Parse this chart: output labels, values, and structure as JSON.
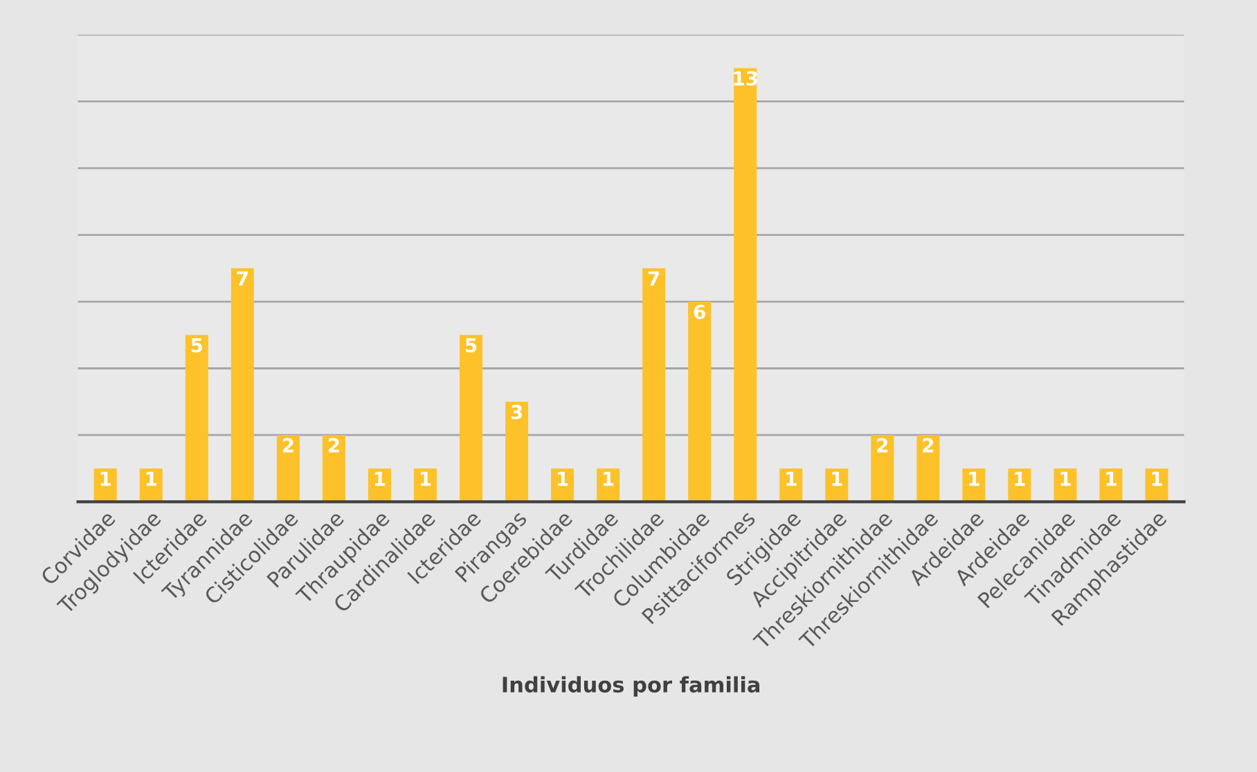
{
  "chart_data": {
    "type": "bar",
    "xlabel": "Individuos por familia",
    "categories": [
      "Corvidae",
      "Troglodyidae",
      "Icteridae",
      "Tyrannidae",
      "Cisticolidae",
      "Parulidae",
      "Thraupidae",
      "Cardinalidae",
      "Icteridae",
      "Pirangas",
      "Coerebidae",
      "Turdidae",
      "Trochilidae",
      "Columbidae",
      "Psittaciformes",
      "Strigidae",
      "Accipitridae",
      "Threskiornithidae",
      "Threskiornithidae",
      "Ardeidae",
      "Ardeidae",
      "Pelecanidae",
      "Tinadmidae",
      "Ramphastidae"
    ],
    "values": [
      1,
      1,
      5,
      7,
      2,
      2,
      1,
      1,
      5,
      3,
      1,
      1,
      7,
      6,
      13,
      1,
      1,
      2,
      2,
      1,
      1,
      1,
      1,
      1
    ],
    "color": "#fdc22a",
    "data_labels": true,
    "ylim": [
      0,
      14
    ],
    "yticks": [
      {
        "value": 0,
        "label": null
      },
      {
        "value": 2,
        "label": null
      },
      {
        "value": 4,
        "label": null
      },
      {
        "value": 6,
        "label": null
      },
      {
        "value": 8,
        "label": null
      },
      {
        "value": 10,
        "label": null
      },
      {
        "value": 12,
        "label": null
      },
      {
        "value": 14,
        "label": null
      }
    ],
    "tick_labels": "x",
    "grid": "y",
    "legend": false
  }
}
